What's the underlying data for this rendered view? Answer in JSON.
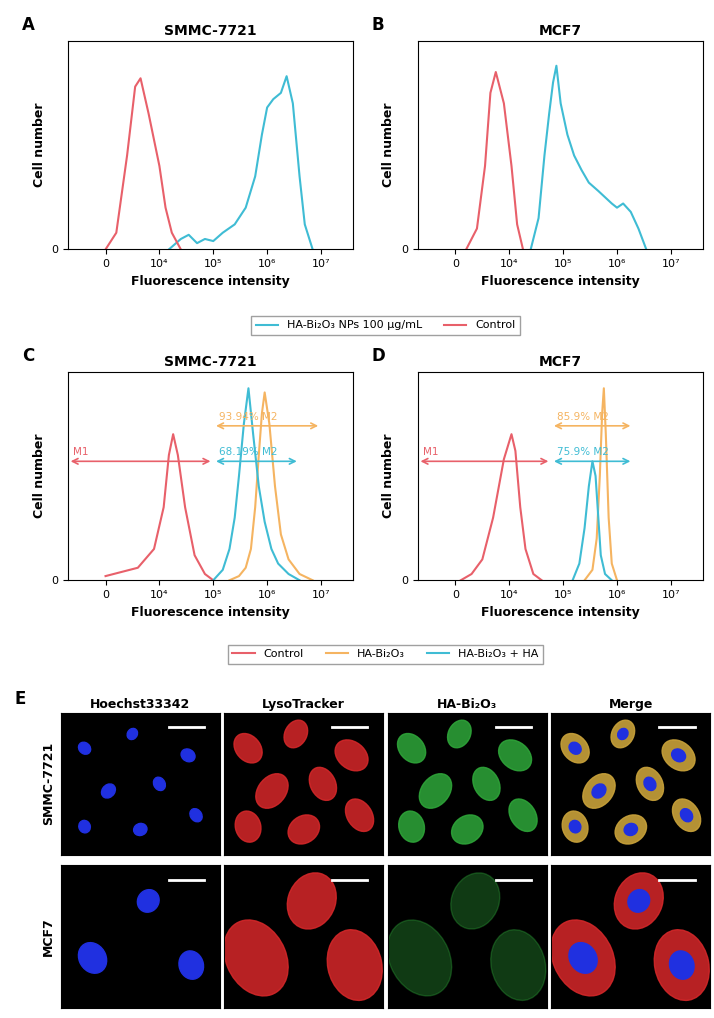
{
  "chart_data": [
    {
      "type": "line",
      "panel": "A",
      "title": "SMMC-7721",
      "x_label": "Fluorescence intensity",
      "y_label": "Cell number",
      "log": "x",
      "xlim": [
        -7000,
        40000000
      ],
      "ylim": [
        0,
        100
      ],
      "xticks": [
        0,
        {
          "value": 10000,
          "label": "10⁴"
        },
        {
          "value": 100000,
          "label": "10⁵"
        },
        {
          "value": 1000000,
          "label": "10⁶"
        },
        {
          "value": 10000000,
          "label": "10⁷"
        }
      ],
      "yticks": [
        0
      ],
      "legend": "below",
      "series": [
        {
          "name": "HA-Bi₂O₃ NPs 100 µg/mL",
          "color": "#3fbcd4",
          "x": [
            15000,
            25000,
            35000,
            50000,
            70000,
            100000,
            150000,
            250000,
            400000,
            600000,
            800000,
            1000000,
            1300000,
            1800000,
            2300000,
            3000000,
            4000000,
            5000000,
            7000000
          ],
          "values": [
            0,
            5,
            7,
            3,
            5,
            4,
            8,
            12,
            20,
            35,
            55,
            68,
            72,
            75,
            83,
            70,
            35,
            12,
            0
          ]
        },
        {
          "name": "Control",
          "color": "#e8606a",
          "x": [
            0,
            2000,
            4000,
            5500,
            6500,
            8000,
            10000,
            13000,
            17000,
            25000
          ],
          "values": [
            0,
            8,
            45,
            78,
            82,
            65,
            40,
            20,
            8,
            0
          ]
        }
      ]
    },
    {
      "type": "line",
      "panel": "B",
      "title": "MCF7",
      "x_label": "Fluorescence intensity",
      "y_label": "Cell number",
      "log": "x",
      "xlim": [
        -7000,
        40000000
      ],
      "ylim": [
        0,
        100
      ],
      "xticks": [
        0,
        {
          "value": 10000,
          "label": "10⁴"
        },
        {
          "value": 100000,
          "label": "10⁵"
        },
        {
          "value": 1000000,
          "label": "10⁶"
        },
        {
          "value": 10000000,
          "label": "10⁷"
        }
      ],
      "yticks": [
        0
      ],
      "series": [
        {
          "name": "HA-Bi₂O₃ NPs 100 µg/mL",
          "color": "#3fbcd4",
          "x": [
            25000,
            35000,
            45000,
            55000,
            65000,
            75000,
            90000,
            120000,
            160000,
            220000,
            300000,
            450000,
            600000,
            800000,
            1000000,
            1300000,
            1800000,
            2500000,
            3500000
          ],
          "values": [
            0,
            15,
            45,
            65,
            80,
            88,
            70,
            55,
            45,
            38,
            32,
            28,
            25,
            22,
            20,
            22,
            18,
            10,
            0
          ]
        },
        {
          "name": "Control",
          "color": "#e8606a",
          "x": [
            2000,
            4000,
            5500,
            6500,
            7500,
            9000,
            11000,
            14000,
            18000
          ],
          "values": [
            0,
            10,
            40,
            75,
            85,
            70,
            40,
            12,
            0
          ]
        }
      ]
    },
    {
      "type": "line",
      "panel": "C",
      "title": "SMMC-7721",
      "x_label": "Fluorescence intensity",
      "y_label": "Cell number",
      "log": "x",
      "xlim": [
        -7000,
        40000000
      ],
      "ylim": [
        0,
        100
      ],
      "xticks": [
        0,
        {
          "value": 10000,
          "label": "10⁴"
        },
        {
          "value": 100000,
          "label": "10⁵"
        },
        {
          "value": 1000000,
          "label": "10⁶"
        },
        {
          "value": 10000000,
          "label": "10⁷"
        }
      ],
      "yticks": [
        0
      ],
      "legend": "below",
      "series": [
        {
          "name": "Control",
          "color": "#e8606a",
          "x": [
            0,
            3000,
            6000,
            9000,
            12000,
            15000,
            18000,
            22000,
            30000,
            45000,
            70000,
            100000
          ],
          "values": [
            2,
            4,
            6,
            15,
            35,
            60,
            70,
            60,
            35,
            12,
            3,
            0
          ]
        },
        {
          "name": "HA-Bi₂O₃",
          "color": "#f5b461",
          "x": [
            200000,
            300000,
            400000,
            500000,
            600000,
            700000,
            800000,
            900000,
            1100000,
            1400000,
            1800000,
            2500000,
            4000000,
            7000000
          ],
          "values": [
            0,
            2,
            6,
            15,
            35,
            60,
            80,
            90,
            75,
            45,
            22,
            10,
            3,
            0
          ]
        },
        {
          "name": "HA-Bi₂O₃ + HA",
          "color": "#3fbcd4",
          "x": [
            100000,
            150000,
            200000,
            250000,
            300000,
            370000,
            450000,
            550000,
            700000,
            900000,
            1200000,
            1600000,
            2500000,
            4000000
          ],
          "values": [
            0,
            5,
            15,
            30,
            50,
            75,
            92,
            70,
            45,
            28,
            15,
            8,
            3,
            0
          ]
        }
      ],
      "markers": [
        {
          "label": "M1",
          "color": "#e8606a",
          "from": -7000,
          "to": 100000,
          "y": 57
        },
        {
          "label": "93.94% M2",
          "color": "#f5b461",
          "from": 100000,
          "to": 10000000,
          "y": 74
        },
        {
          "label": "68.19% M2",
          "color": "#3fbcd4",
          "from": 100000,
          "to": 4000000,
          "y": 57
        }
      ]
    },
    {
      "type": "line",
      "panel": "D",
      "title": "MCF7",
      "x_label": "Fluorescence intensity",
      "y_label": "Cell number",
      "log": "x",
      "xlim": [
        -7000,
        40000000
      ],
      "ylim": [
        0,
        100
      ],
      "xticks": [
        0,
        {
          "value": 10000,
          "label": "10⁴"
        },
        {
          "value": 100000,
          "label": "10⁵"
        },
        {
          "value": 1000000,
          "label": "10⁶"
        },
        {
          "value": 10000000,
          "label": "10⁷"
        }
      ],
      "yticks": [
        0
      ],
      "series": [
        {
          "name": "Control",
          "color": "#e8606a",
          "x": [
            1000,
            3000,
            5000,
            7000,
            9000,
            11000,
            13000,
            16000,
            20000,
            28000,
            40000
          ],
          "values": [
            0,
            3,
            10,
            30,
            58,
            70,
            62,
            35,
            15,
            3,
            0
          ]
        },
        {
          "name": "HA-Bi₂O₃",
          "color": "#f5b461",
          "x": [
            250000,
            350000,
            420000,
            480000,
            530000,
            570000,
            620000,
            700000,
            800000,
            1000000
          ],
          "values": [
            0,
            5,
            20,
            50,
            80,
            92,
            70,
            30,
            8,
            0
          ]
        },
        {
          "name": "HA-Bi₂O₃ + HA",
          "color": "#3fbcd4",
          "x": [
            150000,
            200000,
            250000,
            300000,
            350000,
            400000,
            450000,
            500000,
            600000,
            800000
          ],
          "values": [
            0,
            8,
            25,
            45,
            57,
            50,
            30,
            12,
            3,
            0
          ]
        }
      ],
      "markers": [
        {
          "label": "M1",
          "color": "#e8606a",
          "from": -7000,
          "to": 60000,
          "y": 57
        },
        {
          "label": "85.9% M2",
          "color": "#f5b461",
          "from": 60000,
          "to": 2000000,
          "y": 74
        },
        {
          "label": "75.9% M2",
          "color": "#3fbcd4",
          "from": 60000,
          "to": 2000000,
          "y": 57
        }
      ]
    }
  ],
  "panel_E": {
    "panel": "E",
    "columns": [
      "Hoechst33342",
      "LysoTracker",
      "HA-Bi₂O₃",
      "Merge"
    ],
    "rows": [
      "SMMC-7721",
      "MCF7"
    ]
  }
}
